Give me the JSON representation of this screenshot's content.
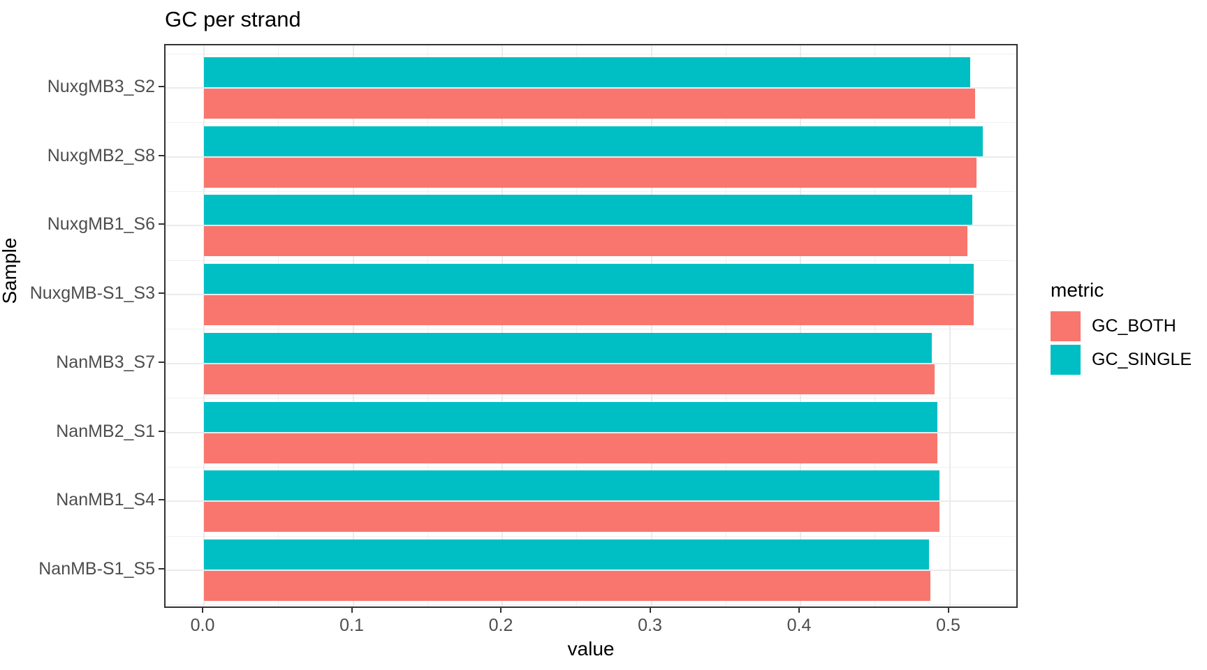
{
  "title": "GC per strand",
  "axes": {
    "x_label": "value",
    "y_label": "Sample"
  },
  "legend": {
    "title": "metric",
    "position": "right"
  },
  "colors": {
    "gc_both": "#F8766D",
    "gc_single": "#00BFC4",
    "panel_border": "#333333",
    "grid_major": "#EBEBEB",
    "tick_text": "#4D4D4D"
  },
  "chart_data": {
    "type": "bar",
    "orientation": "horizontal",
    "title": "GC per strand",
    "xlabel": "value",
    "ylabel": "Sample",
    "categories": [
      "NuxgMB3_S2",
      "NuxgMB2_S8",
      "NuxgMB1_S6",
      "NuxgMB-S1_S3",
      "NanMB3_S7",
      "NanMB2_S1",
      "NanMB1_S4",
      "NanMB-S1_S5"
    ],
    "categories_order": "top-to-bottom",
    "series": [
      {
        "name": "GC_BOTH",
        "color": "#F8766D",
        "values": [
          0.517,
          0.518,
          0.512,
          0.516,
          0.49,
          0.492,
          0.493,
          0.487
        ]
      },
      {
        "name": "GC_SINGLE",
        "color": "#00BFC4",
        "values": [
          0.514,
          0.522,
          0.515,
          0.516,
          0.488,
          0.492,
          0.493,
          0.486
        ]
      }
    ],
    "group_layout": "dodged; GC_SINGLE bar drawn above GC_BOTH bar in each group",
    "x_ticks": [
      0.0,
      0.1,
      0.2,
      0.3,
      0.4,
      0.5
    ],
    "x_tick_labels": [
      "0.0",
      "0.1",
      "0.2",
      "0.3",
      "0.4",
      "0.5"
    ],
    "xlim": [
      -0.026,
      0.547
    ],
    "grid": "major and minor vertical + horizontal, light gray on white",
    "legend_position": "right-center"
  }
}
